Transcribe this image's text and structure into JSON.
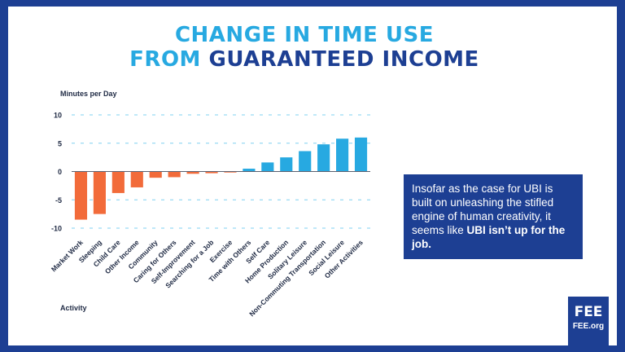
{
  "title": {
    "line1": "CHANGE IN TIME USE",
    "line2_accent": "FROM ",
    "line2_main": "GUARANTEED INCOME"
  },
  "quote": {
    "text": "Insofar as the case for UBI is built on unleashing the stifled engine of human creativity, it seems like",
    "emphasis": "UBI isn’t up for the job."
  },
  "badge": {
    "name": "FEE",
    "site": "FEE.org"
  },
  "colors": {
    "frame": "#1d3f93",
    "title_accent": "#27a9e1",
    "negative_bar": "#f26b3a",
    "positive_bar": "#27a9e1",
    "grid": "#7fd0f0"
  },
  "chart_data": {
    "type": "bar",
    "ylabel": "Minutes per Day",
    "xlabel": "Activity",
    "ylim": [
      -10,
      10
    ],
    "yticks": [
      10,
      5,
      0,
      -5,
      -10
    ],
    "grid": true,
    "categories": [
      "Market Work",
      "Sleeping",
      "Child Care",
      "Other Income",
      "Community",
      "Caring for Others",
      "Self-Improvement",
      "Searching for a Job",
      "Exercise",
      "Time with Others",
      "Self Care",
      "Home Production",
      "Solitary Leisure",
      "Non-Commuting Transportation",
      "Social Leisure",
      "Other Activities"
    ],
    "values": [
      -8.5,
      -7.5,
      -3.8,
      -2.8,
      -1.1,
      -1.0,
      -0.4,
      -0.3,
      -0.1,
      0.5,
      1.6,
      2.5,
      3.6,
      4.8,
      5.8,
      6.0
    ]
  }
}
